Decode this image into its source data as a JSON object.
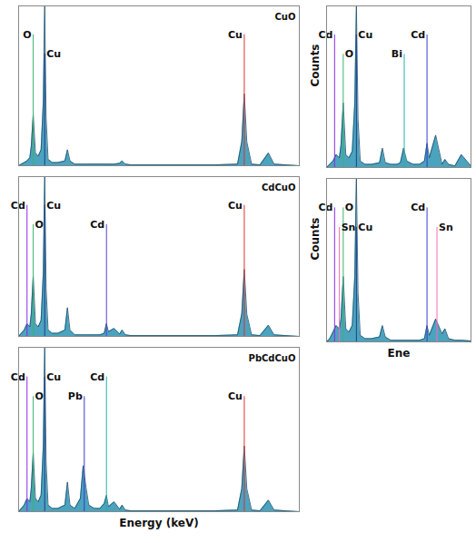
{
  "chart_data": [
    {
      "type": "area",
      "title": "CuO",
      "xlim": [
        0,
        10
      ],
      "ylim": [
        0,
        100
      ],
      "tick_labels": false,
      "color": "#2b93b3",
      "x": [
        0,
        0.1,
        0.2,
        0.3,
        0.4,
        0.45,
        0.52,
        0.6,
        0.7,
        0.8,
        0.88,
        0.93,
        0.98,
        1.05,
        1.2,
        1.4,
        1.65,
        1.74,
        1.83,
        2.0,
        2.2,
        2.3,
        2.4,
        2.5,
        2.7,
        2.9,
        3.05,
        3.13,
        3.2,
        3.4,
        3.6,
        3.69,
        3.8,
        4.0,
        5.0,
        6.0,
        7.0,
        7.8,
        7.95,
        8.04,
        8.13,
        8.3,
        8.6,
        8.9,
        9.1,
        9.5,
        10
      ],
      "values": [
        0,
        1,
        2,
        3,
        5,
        12,
        32,
        8,
        6,
        10,
        40,
        100,
        30,
        4,
        2,
        2,
        3,
        10,
        3,
        1,
        1,
        1,
        1,
        1,
        1,
        1,
        1,
        1,
        1,
        1,
        1.5,
        3,
        1,
        0.5,
        0.5,
        0.5,
        0.5,
        1,
        15,
        45,
        15,
        1,
        0.5,
        8,
        1,
        0.5,
        0
      ],
      "annotations": [
        {
          "label": "O",
          "x": 0.52,
          "color": "#3cb371"
        },
        {
          "label": "Cu",
          "x": 0.93,
          "color": "#1f3f8f"
        },
        {
          "label": "Cu",
          "x": 8.04,
          "color": "#e03030"
        }
      ]
    },
    {
      "type": "area",
      "title": "CdCuO",
      "xlim": [
        0,
        10
      ],
      "ylim": [
        0,
        100
      ],
      "tick_labels": false,
      "color": "#2b93b3",
      "x": [
        0,
        0.1,
        0.2,
        0.3,
        0.4,
        0.45,
        0.52,
        0.6,
        0.7,
        0.8,
        0.88,
        0.93,
        0.98,
        1.05,
        1.2,
        1.4,
        1.65,
        1.74,
        1.83,
        2.0,
        2.2,
        2.3,
        2.4,
        2.5,
        2.7,
        2.9,
        3.05,
        3.13,
        3.2,
        3.4,
        3.6,
        3.69,
        3.8,
        4.0,
        5.0,
        6.0,
        7.0,
        7.8,
        7.95,
        8.04,
        8.13,
        8.3,
        8.6,
        8.9,
        9.1,
        9.5,
        10
      ],
      "values": [
        0,
        2,
        4,
        8,
        6,
        14,
        38,
        8,
        6,
        10,
        40,
        100,
        30,
        4,
        2,
        2,
        4,
        18,
        4,
        1,
        1,
        1,
        1,
        1,
        1,
        1,
        2,
        8,
        3,
        5,
        1.5,
        4,
        1,
        0.5,
        0.5,
        0.5,
        0.5,
        1,
        14,
        42,
        14,
        1,
        0.5,
        7,
        1,
        0.5,
        0
      ],
      "annotations": [
        {
          "label": "Cd",
          "x": 0.3,
          "color": "#8a2be2"
        },
        {
          "label": "O",
          "x": 0.52,
          "color": "#3cb371"
        },
        {
          "label": "Cu",
          "x": 0.93,
          "color": "#1f3f8f"
        },
        {
          "label": "Cd",
          "x": 3.13,
          "color": "#5b3fd0"
        },
        {
          "label": "Cu",
          "x": 8.04,
          "color": "#e03030"
        }
      ]
    },
    {
      "type": "area",
      "title": "PbCdCuO",
      "xlabel": "Energy (keV)",
      "xlim": [
        0,
        10
      ],
      "ylim": [
        0,
        100
      ],
      "tick_labels": false,
      "color": "#2b93b3",
      "x": [
        0,
        0.1,
        0.2,
        0.3,
        0.4,
        0.45,
        0.52,
        0.6,
        0.7,
        0.8,
        0.88,
        0.93,
        0.98,
        1.05,
        1.2,
        1.4,
        1.65,
        1.74,
        1.83,
        2.0,
        2.2,
        2.3,
        2.4,
        2.5,
        2.7,
        2.9,
        3.05,
        3.13,
        3.2,
        3.4,
        3.6,
        3.69,
        3.8,
        4.0,
        5.0,
        6.0,
        7.0,
        7.8,
        7.95,
        8.04,
        8.13,
        8.3,
        8.6,
        8.9,
        9.1,
        9.5,
        10
      ],
      "values": [
        0,
        2,
        4,
        8,
        6,
        14,
        36,
        8,
        6,
        10,
        40,
        100,
        30,
        4,
        2,
        2,
        4,
        18,
        4,
        2,
        8,
        28,
        15,
        4,
        2,
        2,
        5,
        10,
        3,
        6,
        1.5,
        4,
        1,
        0.5,
        0.5,
        0.5,
        0.5,
        1,
        14,
        40,
        14,
        1,
        0.5,
        7,
        1,
        0.5,
        0
      ],
      "annotations": [
        {
          "label": "Cd",
          "x": 0.3,
          "color": "#8a2be2"
        },
        {
          "label": "O",
          "x": 0.52,
          "color": "#3cb371"
        },
        {
          "label": "Cu",
          "x": 0.93,
          "color": "#1f3f8f"
        },
        {
          "label": "Pb",
          "x": 2.34,
          "color": "#3a3ad0"
        },
        {
          "label": "Cd",
          "x": 3.13,
          "color": "#20b2aa"
        },
        {
          "label": "Cu",
          "x": 8.04,
          "color": "#e03030"
        }
      ]
    },
    {
      "type": "area",
      "ylabel": "Counts",
      "xlim": [
        0,
        4.5
      ],
      "ylim": [
        0,
        100
      ],
      "tick_labels": false,
      "color": "#2b93b3",
      "x": [
        0,
        0.1,
        0.2,
        0.3,
        0.4,
        0.45,
        0.52,
        0.6,
        0.7,
        0.8,
        0.88,
        0.93,
        0.98,
        1.05,
        1.2,
        1.4,
        1.65,
        1.74,
        1.83,
        2.0,
        2.2,
        2.3,
        2.4,
        2.5,
        2.7,
        2.9,
        3.05,
        3.13,
        3.2,
        3.4,
        3.6,
        3.69,
        3.8,
        4.0,
        4.2,
        4.5
      ],
      "values": [
        0,
        2,
        4,
        8,
        6,
        14,
        40,
        8,
        6,
        10,
        40,
        100,
        30,
        4,
        2,
        2,
        3,
        12,
        3,
        2,
        2,
        3,
        12,
        4,
        2,
        2,
        4,
        15,
        6,
        20,
        2,
        5,
        2,
        1,
        8,
        1
      ],
      "annotations": [
        {
          "label": "Cd",
          "x": 0.25,
          "color": "#8a2be2"
        },
        {
          "label": "O",
          "x": 0.52,
          "color": "#3cb371"
        },
        {
          "label": "Cu",
          "x": 0.93,
          "color": "#1f3f8f"
        },
        {
          "label": "Bi",
          "x": 2.42,
          "color": "#20b2aa"
        },
        {
          "label": "Cd",
          "x": 3.13,
          "color": "#3a3ad0"
        }
      ]
    },
    {
      "type": "area",
      "ylabel": "Counts",
      "xlabel": "Ene",
      "xlim": [
        0,
        4.5
      ],
      "ylim": [
        0,
        100
      ],
      "tick_labels": false,
      "color": "#2b93b3",
      "x": [
        0,
        0.1,
        0.2,
        0.3,
        0.4,
        0.45,
        0.52,
        0.6,
        0.7,
        0.8,
        0.88,
        0.93,
        0.98,
        1.05,
        1.2,
        1.4,
        1.65,
        1.74,
        1.83,
        2.0,
        2.2,
        2.3,
        2.4,
        2.5,
        2.7,
        2.9,
        3.05,
        3.13,
        3.2,
        3.4,
        3.6,
        3.69,
        3.8,
        4.0,
        4.2,
        4.5
      ],
      "values": [
        0,
        2,
        6,
        10,
        8,
        14,
        40,
        8,
        6,
        10,
        40,
        100,
        30,
        4,
        2,
        2,
        3,
        10,
        3,
        1,
        1,
        1,
        1,
        1,
        1,
        1,
        2,
        10,
        4,
        14,
        5,
        8,
        2,
        1,
        1,
        0.5
      ],
      "annotations": [
        {
          "label": "Cd",
          "x": 0.25,
          "color": "#8a2be2"
        },
        {
          "label": "Sn",
          "x": 0.4,
          "color": "#ff69b4"
        },
        {
          "label": "O",
          "x": 0.52,
          "color": "#3cb371"
        },
        {
          "label": "Cu",
          "x": 0.93,
          "color": "#1f3f8f"
        },
        {
          "label": "Cd",
          "x": 3.13,
          "color": "#3a3ad0"
        },
        {
          "label": "Sn",
          "x": 3.44,
          "color": "#ff69b4"
        }
      ]
    }
  ]
}
